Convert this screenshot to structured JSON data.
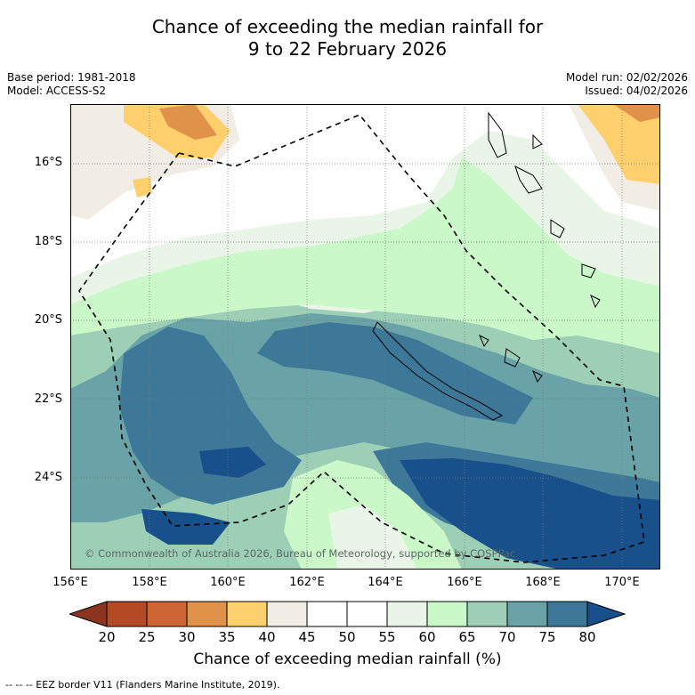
{
  "title": {
    "line1": "Chance of exceeding the median rainfall for",
    "line2": "9 to 22 February 2026"
  },
  "meta": {
    "base_period": "Base period: 1981-2018",
    "model": "Model: ACCESS-S2",
    "model_run": "Model run: 02/02/2026",
    "issued": "Issued: 04/02/2026"
  },
  "axes": {
    "lat_labels": [
      "16°S",
      "18°S",
      "20°S",
      "22°S",
      "24°S"
    ],
    "lon_labels": [
      "156°E",
      "158°E",
      "160°E",
      "162°E",
      "164°E",
      "166°E",
      "168°E",
      "170°E"
    ]
  },
  "credit": "© Commonwealth of Australia 2026, Bureau of Meteorology, supported by COSPPac",
  "colorbar": {
    "ticks": [
      "20",
      "25",
      "30",
      "35",
      "40",
      "45",
      "50",
      "55",
      "60",
      "65",
      "70",
      "75",
      "80"
    ],
    "label": "Chance of exceeding median rainfall (%)",
    "colors": [
      "#8b3520",
      "#b34a25",
      "#cc6434",
      "#e0924a",
      "#fdd06d",
      "#f1ede5",
      "#ffffff",
      "#ffffff",
      "#e9f5e6",
      "#caf8c9",
      "#9ccfb6",
      "#6aa3a7",
      "#3e7898",
      "#17508a"
    ]
  },
  "legend_footnote": "--  --  -- EEZ border V11 (Flanders Marine Institute, 2019)."
}
